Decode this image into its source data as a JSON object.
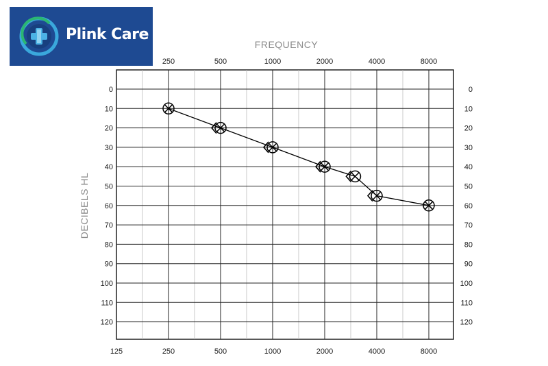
{
  "brand": {
    "name": "Plink Care",
    "logo_icon": "medical-cross-swirl-icon",
    "bg_color": "#1e4a92",
    "swirl_color": "#3aa8dc",
    "accent_color": "#2bb673"
  },
  "chart_data": {
    "type": "line",
    "title": "",
    "top_axis_title": "FREQUENCY",
    "ylabel": "DECIBELS HL",
    "x_top_ticks": [
      "250",
      "500",
      "1000",
      "2000",
      "4000",
      "8000"
    ],
    "x_bottom_ticks": [
      "125",
      "250",
      "500",
      "1000",
      "2000",
      "4000",
      "8000"
    ],
    "y_ticks": [
      "0",
      "10",
      "20",
      "30",
      "40",
      "50",
      "60",
      "70",
      "80",
      "90",
      "100",
      "110",
      "120"
    ],
    "ylim": [
      0,
      125
    ],
    "y_inverted": true,
    "x_scale": "log2",
    "grid": true,
    "legend": "none",
    "series": [
      {
        "markers": [
          "circle-x",
          "bracket"
        ],
        "color": "#000000",
        "points": [
          {
            "x": 250,
            "y": 10
          },
          {
            "x": 500,
            "y": 20
          },
          {
            "x": 1000,
            "y": 30
          },
          {
            "x": 2000,
            "y": 40
          },
          {
            "x": 3000,
            "y": 45
          },
          {
            "x": 4000,
            "y": 55
          },
          {
            "x": 8000,
            "y": 60
          }
        ]
      }
    ]
  }
}
